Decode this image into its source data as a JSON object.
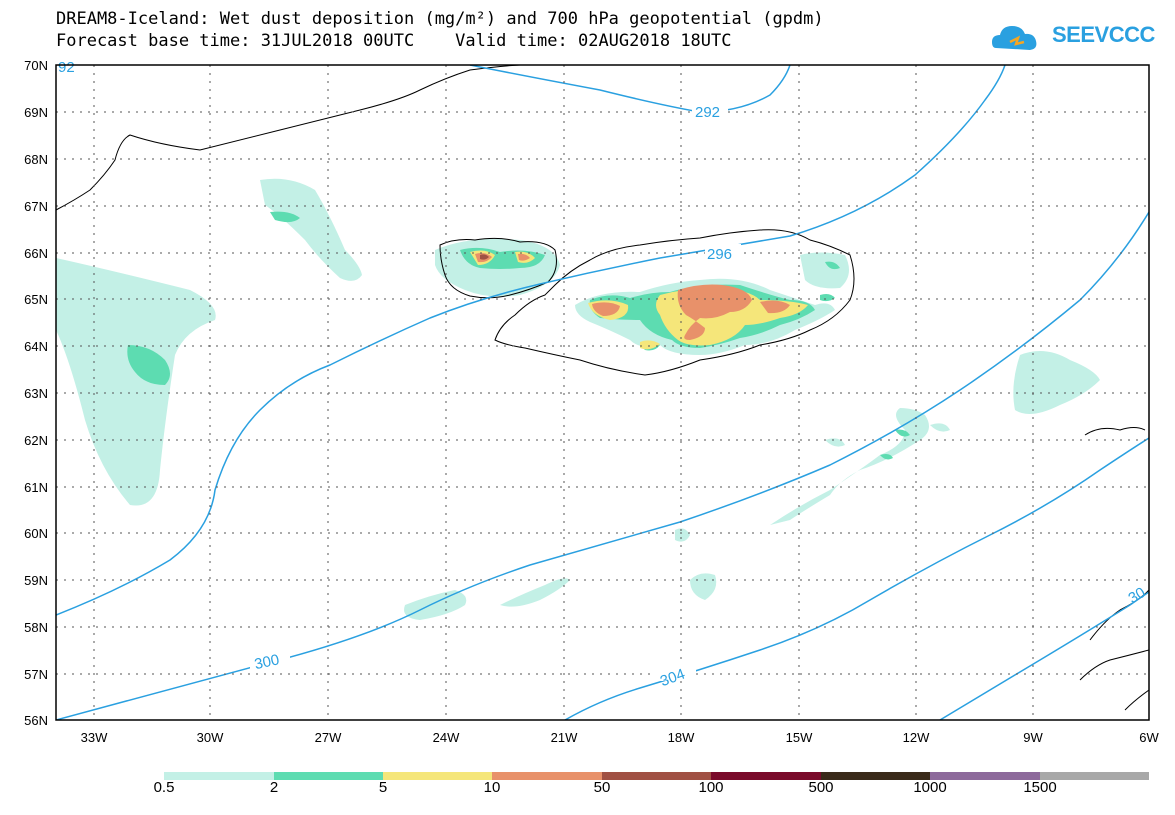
{
  "title": {
    "line1": "DREAM8-Iceland: Wet dust deposition (mg/m²) and 700 hPa geopotential (gpdm)",
    "line2": "Forecast base time: 31JUL2018 00UTC    Valid time: 02AUG2018 18UTC"
  },
  "logo": {
    "text": "SEEVCCC",
    "icon": "cloud-icon"
  },
  "map": {
    "lat_labels": [
      "70N",
      "69N",
      "68N",
      "67N",
      "66N",
      "65N",
      "64N",
      "63N",
      "62N",
      "61N",
      "60N",
      "59N",
      "58N",
      "57N",
      "56N"
    ],
    "lon_labels": [
      "33W",
      "30W",
      "27W",
      "24W",
      "21W",
      "18W",
      "15W",
      "12W",
      "9W",
      "6W"
    ],
    "contour_labels": [
      "292",
      "296",
      "300",
      "304",
      "30",
      "92"
    ],
    "grid": true
  },
  "colors": {
    "contour": "#2aa0e0",
    "level_0_5": "#c3f0e6",
    "level_2": "#5ddcb1",
    "level_5": "#f5e67a",
    "level_10": "#e8916a",
    "level_50": "#a05043",
    "level_100": "#7a0a2a",
    "level_500": "#3a2a1a",
    "level_1000": "#8d6a9b",
    "level_1500": "#a8a8a8"
  },
  "legend": {
    "labels": [
      "0.5",
      "2",
      "5",
      "10",
      "50",
      "100",
      "500",
      "1000",
      "1500"
    ],
    "colors": [
      "#c3f0e6",
      "#5ddcb1",
      "#f5e67a",
      "#e8916a",
      "#a05043",
      "#7a0a2a",
      "#3a2a1a",
      "#8d6a9b",
      "#a8a8a8"
    ]
  }
}
